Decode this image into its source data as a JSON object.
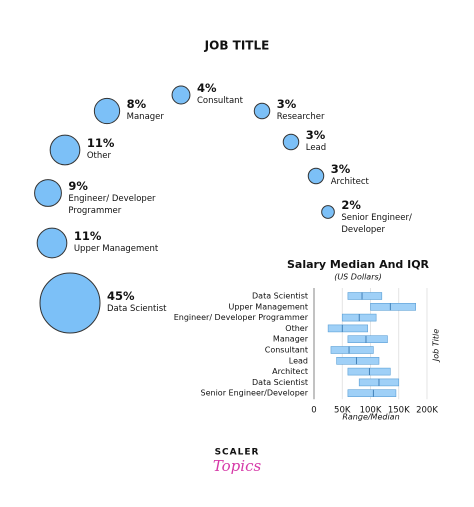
{
  "chart_data": [
    {
      "type": "bubble",
      "title": "JOB TITLE",
      "categories": [
        "Data Scientist",
        "Upper Management",
        "Engineer/ Developer Programmer",
        "Other",
        "Manager",
        "Consultant",
        "Researcher",
        "Lead",
        "Architect",
        "Senior Engineer/ Developer"
      ],
      "values": [
        45,
        11,
        9,
        11,
        8,
        4,
        3,
        3,
        3,
        2
      ],
      "value_labels": [
        "45%",
        "11%",
        "9%",
        "11%",
        "8%",
        "4%",
        "3%",
        "3%",
        "3%",
        "2%"
      ],
      "color": "#7cc0f7"
    },
    {
      "type": "range-bar",
      "title": "Salary Median And IQR",
      "subtitle": "(US Dollars)",
      "x_label": "Range/Median",
      "y_label": "Job Title",
      "categories": [
        "Data Scientist",
        "Upper Management",
        "Engineer/ Developer Programmer",
        "Other",
        "Manager",
        "Consultant",
        "Lead",
        "Architect",
        "Data Scientist",
        "Senior Engineer/Developer"
      ],
      "low": [
        60000,
        100000,
        50000,
        25000,
        60000,
        30000,
        40000,
        60000,
        80000,
        60000
      ],
      "high": [
        120000,
        180000,
        110000,
        95000,
        130000,
        105000,
        115000,
        135000,
        150000,
        145000
      ],
      "median": [
        85000,
        135000,
        80000,
        50000,
        92000,
        62000,
        75000,
        98000,
        115000,
        105000
      ],
      "color": "#9fd0f7",
      "xlim": [
        0,
        200000
      ],
      "xticks": [
        {
          "value": 0,
          "label": "0"
        },
        {
          "value": 50000,
          "label": "50K"
        },
        {
          "value": 100000,
          "label": "100K"
        },
        {
          "value": 150000,
          "label": "150K"
        },
        {
          "value": 200000,
          "label": "200K"
        }
      ],
      "grid": true
    }
  ],
  "logo": {
    "top": "SCALER",
    "bottom": "Topics"
  }
}
